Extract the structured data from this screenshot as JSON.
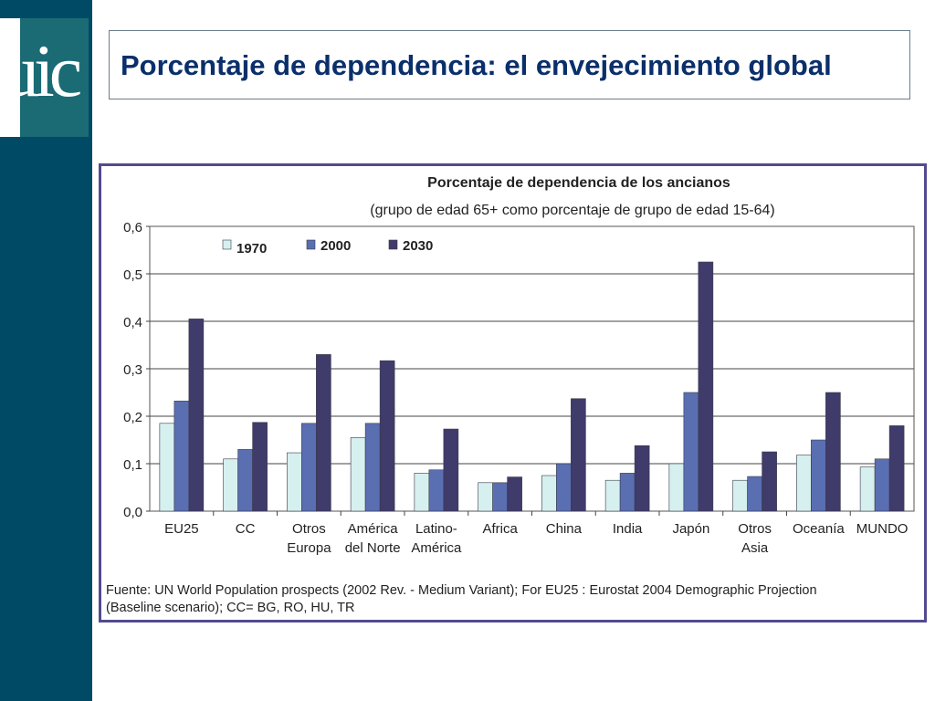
{
  "slide": {
    "title": "Porcentaje de dependencia: el envejecimiento global",
    "logo_text": "uic"
  },
  "colors": {
    "sidebar": "#004a66",
    "logo_box": "#1b6b75",
    "title_text": "#0a2f6b",
    "frame_border": "#534a8f"
  },
  "chart_data": {
    "type": "bar",
    "title": "Porcentaje de dependencia de los ancianos",
    "subtitle": "(grupo de edad 65+ como porcentaje de grupo de edad 15-64)",
    "xlabel": "",
    "ylabel": "",
    "ylim": [
      0,
      0.6
    ],
    "yticks": [
      "0,0",
      "0,1",
      "0,2",
      "0,3",
      "0,4",
      "0,5",
      "0,6"
    ],
    "grid": true,
    "legend_position": "top-left",
    "categories": [
      [
        "EU25"
      ],
      [
        "CC"
      ],
      [
        "Otros",
        "Europa"
      ],
      [
        "América",
        "del Norte"
      ],
      [
        "Latino-",
        "América"
      ],
      [
        "Africa"
      ],
      [
        "China"
      ],
      [
        "India"
      ],
      [
        "Japón"
      ],
      [
        "Otros",
        "Asia"
      ],
      [
        "Oceanía"
      ],
      [
        "MUNDO"
      ]
    ],
    "series": [
      {
        "name": "1970",
        "color": "#d6f0ef",
        "values": [
          0.185,
          0.11,
          0.123,
          0.155,
          0.08,
          0.06,
          0.075,
          0.065,
          0.1,
          0.065,
          0.118,
          0.093
        ]
      },
      {
        "name": "2000",
        "color": "#5a6fb1",
        "values": [
          0.232,
          0.13,
          0.185,
          0.185,
          0.087,
          0.06,
          0.1,
          0.08,
          0.25,
          0.073,
          0.15,
          0.11
        ]
      },
      {
        "name": "2030",
        "color": "#3f3b6b",
        "values": [
          0.405,
          0.187,
          0.33,
          0.317,
          0.173,
          0.072,
          0.237,
          0.138,
          0.525,
          0.125,
          0.25,
          0.18
        ]
      }
    ],
    "source": [
      "Fuente: UN World Population prospects (2002 Rev. - Medium Variant); For EU25 : Eurostat 2004 Demographic Projection",
      "(Baseline scenario); CC= BG, RO, HU, TR"
    ]
  }
}
